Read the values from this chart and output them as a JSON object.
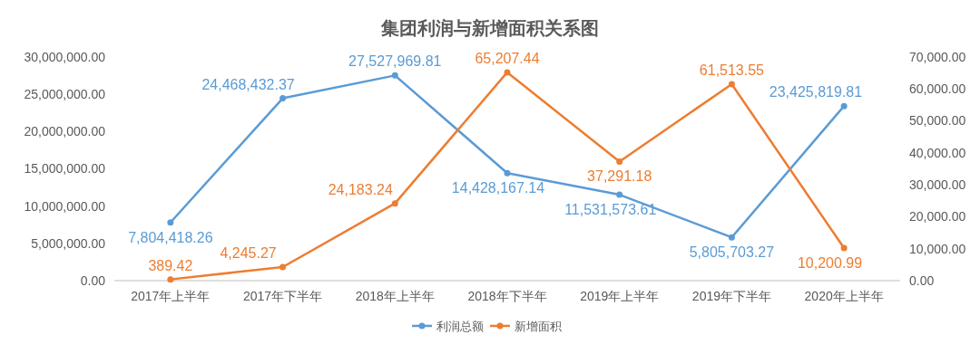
{
  "chart_data": {
    "type": "line",
    "title": "集团利润与新增面积关系图",
    "categories": [
      "2017年上半年",
      "2017年下半年",
      "2018年上半年",
      "2018年下半年",
      "2019年上半年",
      "2019年下半年",
      "2020年上半年"
    ],
    "series": [
      {
        "name": "利润总额",
        "color": "#5b9bd5",
        "values": [
          7804418.26,
          24468432.37,
          27527969.81,
          14428167.14,
          11531573.61,
          5805703.27,
          23425819.81
        ],
        "value_labels": [
          "7,804,418.26",
          "24,468,432.37",
          "27,527,969.81",
          "14,428,167.14",
          "11,531,573.61",
          "5,805,703.27",
          "23,425,819.81"
        ]
      },
      {
        "name": "新增面积",
        "color": "#ed7d31",
        "axis": "y2",
        "values": [
          389.42,
          4245.27,
          24183.24,
          65207.44,
          37291.18,
          61513.55,
          10200.99
        ],
        "value_labels": [
          "389.42",
          "4,245.27",
          "24,183.24",
          "65,207.44",
          "37,291.18",
          "61,513.55",
          "10,200.99"
        ]
      }
    ],
    "ylim": [
      0,
      30000000
    ],
    "yticks": [
      {
        "value": 0,
        "label": "0.00"
      },
      {
        "value": 5000000,
        "label": "5,000,000.00"
      },
      {
        "value": 10000000,
        "label": "10,000,000.00"
      },
      {
        "value": 15000000,
        "label": "15,000,000.00"
      },
      {
        "value": 20000000,
        "label": "20,000,000.00"
      },
      {
        "value": 25000000,
        "label": "25,000,000.00"
      },
      {
        "value": 30000000,
        "label": "30,000,000.00"
      }
    ],
    "y2lim": [
      0,
      70000
    ],
    "y2ticks": [
      {
        "value": 0,
        "label": "0.00"
      },
      {
        "value": 10000,
        "label": "10,000.00"
      },
      {
        "value": 20000,
        "label": "20,000.00"
      },
      {
        "value": 30000,
        "label": "30,000.00"
      },
      {
        "value": 40000,
        "label": "40,000.00"
      },
      {
        "value": 50000,
        "label": "50,000.00"
      },
      {
        "value": 60000,
        "label": "60,000.00"
      },
      {
        "value": 70000,
        "label": "70,000.00"
      }
    ],
    "marker": "circle",
    "legend": "bottom",
    "grid": false
  }
}
